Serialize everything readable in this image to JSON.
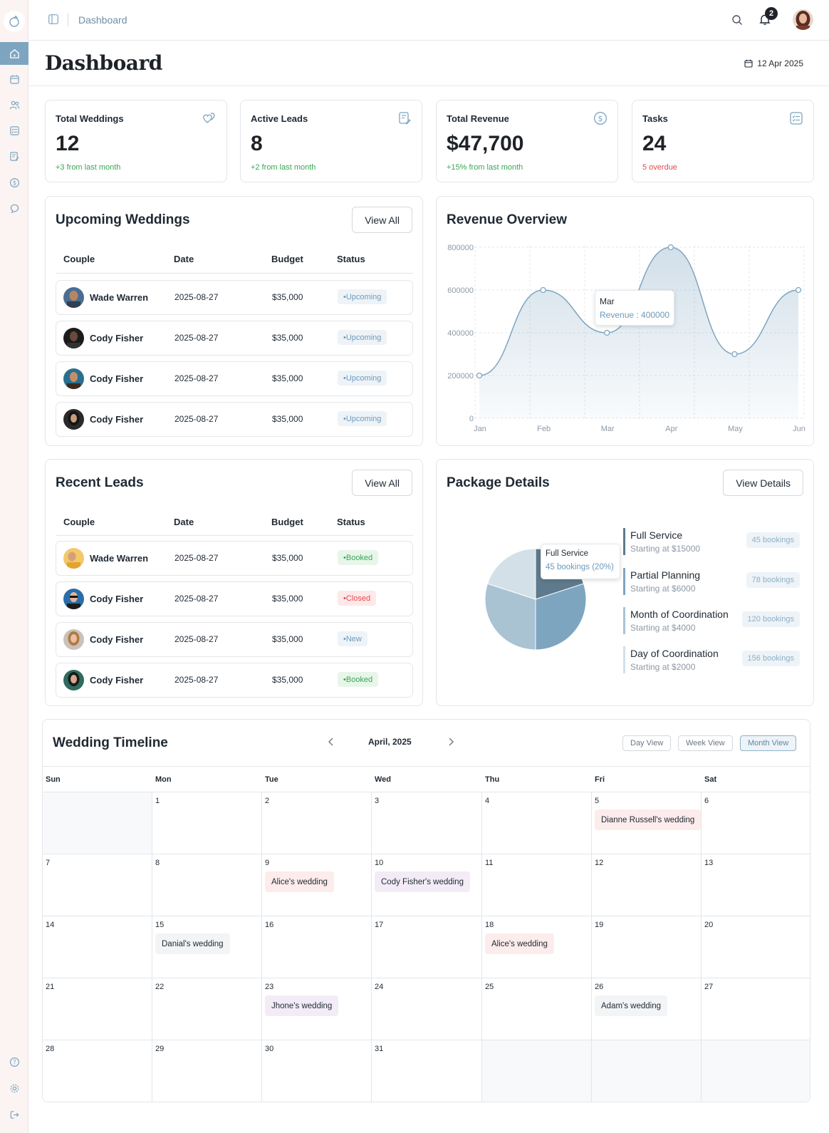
{
  "topbar": {
    "breadcrumb": "Dashboard",
    "notification_count": "2"
  },
  "header": {
    "title": "Dashboard",
    "date": "12 Apr 2025"
  },
  "stats": [
    {
      "label": "Total Weddings",
      "value": "12",
      "note": "+3 from last month",
      "note_color": "#3aa655",
      "icon": "hearts-icon"
    },
    {
      "label": "Active Leads",
      "value": "8",
      "note": "+2 from last month",
      "note_color": "#3aa655",
      "icon": "edit-note-icon"
    },
    {
      "label": "Total Revenue",
      "value": "$47,700",
      "note": "+15% from last month",
      "note_color": "#3aa655",
      "icon": "dollar-circle-icon"
    },
    {
      "label": "Tasks",
      "value": "24",
      "note": "5 overdue",
      "note_color": "#e5484d",
      "icon": "checklist-icon"
    }
  ],
  "upcoming": {
    "title": "Upcoming Weddings",
    "button": "View All",
    "columns": [
      "Couple",
      "Date",
      "Budget",
      "Status"
    ],
    "rows": [
      {
        "name": "Wade Warren",
        "date": "2025-08-27",
        "budget": "$35,000",
        "status": "Upcoming"
      },
      {
        "name": "Cody Fisher",
        "date": "2025-08-27",
        "budget": "$35,000",
        "status": "Upcoming"
      },
      {
        "name": "Cody Fisher",
        "date": "2025-08-27",
        "budget": "$35,000",
        "status": "Upcoming"
      },
      {
        "name": "Cody Fisher",
        "date": "2025-08-27",
        "budget": "$35,000",
        "status": "Upcoming"
      }
    ]
  },
  "leads": {
    "title": "Recent Leads",
    "button": "View All",
    "columns": [
      "Couple",
      "Date",
      "Budget",
      "Status"
    ],
    "rows": [
      {
        "name": "Wade Warren",
        "date": "2025-08-27",
        "budget": "$35,000",
        "status": "Booked"
      },
      {
        "name": "Cody Fisher",
        "date": "2025-08-27",
        "budget": "$35,000",
        "status": "Closed"
      },
      {
        "name": "Cody Fisher",
        "date": "2025-08-27",
        "budget": "$35,000",
        "status": "New"
      },
      {
        "name": "Cody Fisher",
        "date": "2025-08-27",
        "budget": "$35,000",
        "status": "Booked"
      }
    ]
  },
  "revenue": {
    "title": "Revenue Overview",
    "tooltip": {
      "label": "Mar",
      "value": "Revenue : 400000"
    }
  },
  "packages": {
    "title": "Package Details",
    "button": "View Details",
    "tooltip": {
      "label": "Full Service",
      "value": "45 bookings (20%)"
    },
    "items": [
      {
        "name": "Full Service",
        "price": "Starting at $15000",
        "count": "45 bookings",
        "color": "#5e7a8c"
      },
      {
        "name": "Partial Planning",
        "price": "Starting at $6000",
        "count": "78 bookings",
        "color": "#7ea5c0"
      },
      {
        "name": "Month of Coordination",
        "price": "Starting at $4000",
        "count": "120 bookings",
        "color": "#a9c3d3"
      },
      {
        "name": "Day of Coordination",
        "price": "Starting at $2000",
        "count": "156 bookings",
        "color": "#d3e0e8"
      }
    ]
  },
  "chart_data": [
    {
      "type": "area",
      "title": "Revenue Overview",
      "categories": [
        "Jan",
        "Feb",
        "Mar",
        "Apr",
        "May",
        "Jun"
      ],
      "series": [
        {
          "values": [
            200000,
            600000,
            400000,
            800000,
            300000,
            600000
          ]
        }
      ],
      "yticks": [
        "0",
        "200000",
        "400000",
        "600000",
        "800000"
      ],
      "ylim": [
        0,
        800000
      ],
      "grid": true,
      "color": "#7ea5c0"
    },
    {
      "type": "pie",
      "title": "Package Details",
      "categories": [
        "Full Service",
        "Partial Planning",
        "Month of Coordination",
        "Day of Coordination"
      ],
      "values": [
        20,
        30,
        30,
        20
      ],
      "colors": [
        "#5e7a8c",
        "#7ea5c0",
        "#a9c3d3",
        "#d3e0e8"
      ]
    }
  ],
  "calendar": {
    "title": "Wedding Timeline",
    "month": "April, 2025",
    "views": [
      "Day View",
      "Week View",
      "Month View"
    ],
    "active_view": "Month View",
    "weekdays": [
      "Sun",
      "Mon",
      "Tue",
      "Wed",
      "Thu",
      "Fri",
      "Sat"
    ],
    "days": [
      "",
      "1",
      "2",
      "3",
      "4",
      "5",
      "6",
      "7",
      "8",
      "9",
      "10",
      "11",
      "12",
      "13",
      "14",
      "15",
      "16",
      "17",
      "18",
      "19",
      "20",
      "21",
      "22",
      "23",
      "24",
      "25",
      "26",
      "27",
      "28",
      "29",
      "30",
      "31",
      "",
      "",
      ""
    ],
    "events": [
      {
        "day": "5",
        "label": "Dianne Russell's wedding",
        "color": "pink"
      },
      {
        "day": "9",
        "label": "Alice's wedding",
        "color": "pink"
      },
      {
        "day": "10",
        "label": "Cody Fisher's wedding",
        "color": "purple"
      },
      {
        "day": "15",
        "label": "Danial's wedding",
        "color": "gray"
      },
      {
        "day": "18",
        "label": "Alice's wedding",
        "color": "pink"
      },
      {
        "day": "23",
        "label": "Jhone's wedding",
        "color": "purple"
      },
      {
        "day": "26",
        "label": "Adam's wedding",
        "color": "gray"
      }
    ]
  }
}
